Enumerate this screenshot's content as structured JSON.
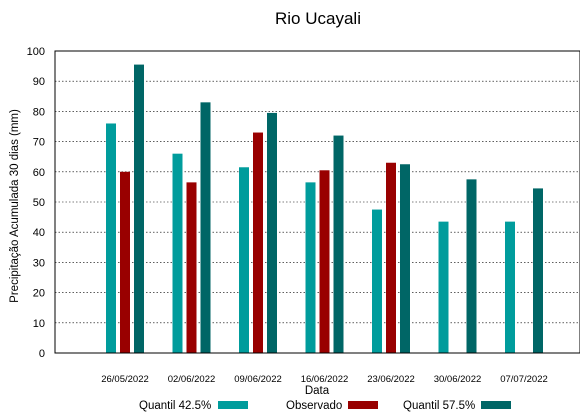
{
  "chart_data": {
    "type": "bar",
    "title": "Rio Ucayali",
    "xlabel": "Data",
    "ylabel": "Precipitação Acumulada 30 dias (mm)",
    "ylim": [
      0,
      100
    ],
    "yticks": [
      0,
      10,
      20,
      30,
      40,
      50,
      60,
      70,
      80,
      90,
      100
    ],
    "grid": true,
    "legend_position": "bottom",
    "categories": [
      "26/05/2022",
      "02/06/2022",
      "09/06/2022",
      "16/06/2022",
      "23/06/2022",
      "30/06/2022",
      "07/07/2022"
    ],
    "series": [
      {
        "name": "Quantil 42.5%",
        "color": "#009c9c",
        "values": [
          76,
          66,
          61.5,
          56.5,
          47.5,
          43.5,
          43.5
        ]
      },
      {
        "name": "Observado",
        "color": "#990000",
        "values": [
          60,
          56.5,
          73,
          60.5,
          63,
          null,
          null
        ]
      },
      {
        "name": "Quantil 57.5%",
        "color": "#006666",
        "values": [
          95.5,
          83,
          79.5,
          72,
          62.5,
          57.5,
          54.5
        ]
      }
    ]
  }
}
